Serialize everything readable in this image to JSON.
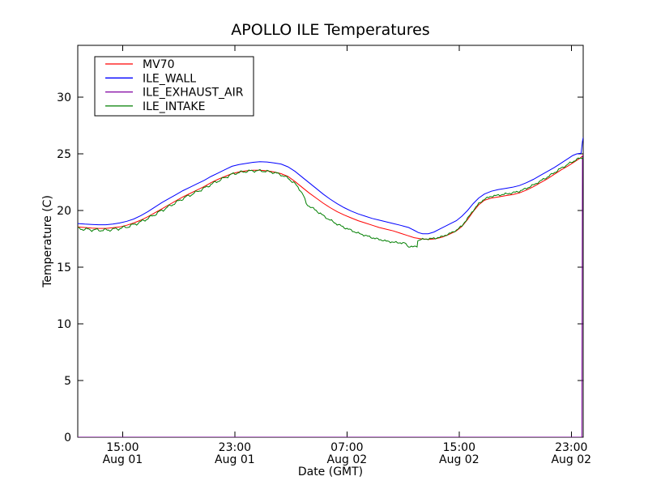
{
  "figure": {
    "background": "#ffffff",
    "frame_color": "#000000"
  },
  "chart_data": {
    "type": "line",
    "title": "APOLLO ILE Temperatures",
    "xlabel": "Date (GMT)",
    "ylabel": "Temperature (C)",
    "x_unit": "hours since Aug 01 00:00 GMT",
    "xlim": [
      11.8,
      47.85
    ],
    "ylim": [
      0,
      34.57
    ],
    "grid": false,
    "yticks": [
      0,
      5,
      10,
      15,
      20,
      25,
      30
    ],
    "xticks": [
      {
        "value": 15,
        "time": "15:00",
        "date": "Aug 01"
      },
      {
        "value": 23,
        "time": "23:00",
        "date": "Aug 01"
      },
      {
        "value": 31,
        "time": "07:00",
        "date": "Aug 02"
      },
      {
        "value": 39,
        "time": "15:00",
        "date": "Aug 02"
      },
      {
        "value": 47,
        "time": "23:00",
        "date": "Aug 02"
      }
    ],
    "legend": {
      "position": "upper left"
    },
    "series": [
      {
        "name": "MV70",
        "color": "#ff0000",
        "points": [
          [
            11.8,
            18.55
          ],
          [
            12.3,
            18.5
          ],
          [
            12.8,
            18.45
          ],
          [
            13.3,
            18.42
          ],
          [
            13.8,
            18.42
          ],
          [
            14.3,
            18.48
          ],
          [
            14.8,
            18.55
          ],
          [
            15.3,
            18.7
          ],
          [
            15.8,
            18.9
          ],
          [
            16.3,
            19.15
          ],
          [
            16.8,
            19.45
          ],
          [
            17.3,
            19.8
          ],
          [
            17.8,
            20.15
          ],
          [
            18.3,
            20.5
          ],
          [
            18.8,
            20.85
          ],
          [
            19.3,
            21.2
          ],
          [
            19.8,
            21.5
          ],
          [
            20.3,
            21.8
          ],
          [
            20.8,
            22.1
          ],
          [
            21.3,
            22.45
          ],
          [
            21.8,
            22.75
          ],
          [
            22.3,
            23.0
          ],
          [
            22.8,
            23.25
          ],
          [
            23.3,
            23.4
          ],
          [
            23.8,
            23.5
          ],
          [
            24.3,
            23.55
          ],
          [
            24.8,
            23.55
          ],
          [
            25.3,
            23.5
          ],
          [
            25.8,
            23.4
          ],
          [
            26.3,
            23.25
          ],
          [
            26.8,
            23.0
          ],
          [
            27.3,
            22.55
          ],
          [
            27.8,
            22.05
          ],
          [
            28.3,
            21.55
          ],
          [
            28.8,
            21.1
          ],
          [
            29.3,
            20.65
          ],
          [
            29.8,
            20.25
          ],
          [
            30.3,
            19.9
          ],
          [
            30.8,
            19.6
          ],
          [
            31.3,
            19.35
          ],
          [
            31.8,
            19.1
          ],
          [
            32.3,
            18.9
          ],
          [
            32.8,
            18.7
          ],
          [
            33.3,
            18.5
          ],
          [
            33.8,
            18.35
          ],
          [
            34.3,
            18.2
          ],
          [
            34.8,
            18.0
          ],
          [
            35.3,
            17.8
          ],
          [
            35.8,
            17.6
          ],
          [
            36.3,
            17.5
          ],
          [
            36.8,
            17.45
          ],
          [
            37.3,
            17.5
          ],
          [
            37.8,
            17.65
          ],
          [
            38.3,
            17.9
          ],
          [
            38.8,
            18.2
          ],
          [
            39.2,
            18.6
          ],
          [
            39.6,
            19.2
          ],
          [
            40.0,
            19.9
          ],
          [
            40.4,
            20.5
          ],
          [
            40.8,
            20.9
          ],
          [
            41.3,
            21.1
          ],
          [
            41.8,
            21.2
          ],
          [
            42.3,
            21.3
          ],
          [
            42.8,
            21.4
          ],
          [
            43.3,
            21.55
          ],
          [
            43.8,
            21.8
          ],
          [
            44.3,
            22.1
          ],
          [
            44.8,
            22.45
          ],
          [
            45.3,
            22.8
          ],
          [
            45.8,
            23.2
          ],
          [
            46.3,
            23.6
          ],
          [
            46.8,
            23.95
          ],
          [
            47.3,
            24.35
          ],
          [
            47.6,
            24.6
          ],
          [
            47.8,
            24.8
          ],
          [
            47.85,
            24.9
          ]
        ]
      },
      {
        "name": "ILE_WALL",
        "color": "#0000ff",
        "points": [
          [
            11.8,
            18.85
          ],
          [
            12.3,
            18.8
          ],
          [
            12.8,
            18.77
          ],
          [
            13.3,
            18.74
          ],
          [
            13.8,
            18.74
          ],
          [
            14.3,
            18.8
          ],
          [
            14.8,
            18.9
          ],
          [
            15.3,
            19.05
          ],
          [
            15.8,
            19.25
          ],
          [
            16.3,
            19.55
          ],
          [
            16.8,
            19.9
          ],
          [
            17.3,
            20.3
          ],
          [
            17.8,
            20.7
          ],
          [
            18.3,
            21.05
          ],
          [
            18.8,
            21.4
          ],
          [
            19.3,
            21.75
          ],
          [
            19.8,
            22.05
          ],
          [
            20.3,
            22.35
          ],
          [
            20.8,
            22.65
          ],
          [
            21.3,
            23.0
          ],
          [
            21.8,
            23.3
          ],
          [
            22.3,
            23.6
          ],
          [
            22.8,
            23.9
          ],
          [
            23.3,
            24.05
          ],
          [
            23.8,
            24.15
          ],
          [
            24.3,
            24.25
          ],
          [
            24.8,
            24.3
          ],
          [
            25.3,
            24.28
          ],
          [
            25.8,
            24.2
          ],
          [
            26.3,
            24.1
          ],
          [
            26.8,
            23.85
          ],
          [
            27.3,
            23.45
          ],
          [
            27.8,
            22.95
          ],
          [
            28.3,
            22.45
          ],
          [
            28.8,
            21.95
          ],
          [
            29.3,
            21.45
          ],
          [
            29.8,
            21.0
          ],
          [
            30.3,
            20.6
          ],
          [
            30.8,
            20.25
          ],
          [
            31.3,
            19.95
          ],
          [
            31.8,
            19.7
          ],
          [
            32.3,
            19.5
          ],
          [
            32.8,
            19.3
          ],
          [
            33.3,
            19.15
          ],
          [
            33.8,
            19.0
          ],
          [
            34.3,
            18.85
          ],
          [
            34.8,
            18.7
          ],
          [
            35.1,
            18.6
          ],
          [
            35.4,
            18.5
          ],
          [
            35.8,
            18.25
          ],
          [
            36.1,
            18.05
          ],
          [
            36.4,
            17.95
          ],
          [
            36.8,
            17.95
          ],
          [
            37.2,
            18.1
          ],
          [
            37.6,
            18.35
          ],
          [
            38.0,
            18.6
          ],
          [
            38.4,
            18.85
          ],
          [
            38.8,
            19.1
          ],
          [
            39.2,
            19.5
          ],
          [
            39.6,
            20.0
          ],
          [
            40.0,
            20.6
          ],
          [
            40.4,
            21.1
          ],
          [
            40.8,
            21.45
          ],
          [
            41.3,
            21.7
          ],
          [
            41.8,
            21.85
          ],
          [
            42.3,
            21.95
          ],
          [
            42.8,
            22.05
          ],
          [
            43.3,
            22.2
          ],
          [
            43.8,
            22.45
          ],
          [
            44.3,
            22.75
          ],
          [
            44.8,
            23.1
          ],
          [
            45.3,
            23.45
          ],
          [
            45.8,
            23.8
          ],
          [
            46.3,
            24.2
          ],
          [
            46.8,
            24.6
          ],
          [
            47.1,
            24.85
          ],
          [
            47.4,
            25.0
          ],
          [
            47.7,
            25.05
          ],
          [
            47.8,
            26.1
          ],
          [
            47.85,
            26.45
          ]
        ]
      },
      {
        "name": "ILE_EXHAUST_AIR",
        "color": "#8000a0",
        "points": [
          [
            11.8,
            0
          ],
          [
            47.75,
            0
          ],
          [
            47.8,
            24.8
          ],
          [
            47.85,
            24.85
          ]
        ]
      },
      {
        "name": "ILE_INTAKE",
        "color": "#007f00",
        "noise": {
          "amplitude": 0.07,
          "note": "sensor jitter seen as jagged trace"
        },
        "points": [
          [
            11.8,
            18.4
          ],
          [
            12.3,
            18.35
          ],
          [
            12.8,
            18.3
          ],
          [
            13.3,
            18.27
          ],
          [
            13.8,
            18.27
          ],
          [
            14.3,
            18.33
          ],
          [
            14.8,
            18.42
          ],
          [
            15.3,
            18.55
          ],
          [
            15.8,
            18.75
          ],
          [
            16.3,
            19.0
          ],
          [
            16.8,
            19.3
          ],
          [
            17.3,
            19.65
          ],
          [
            17.8,
            20.0
          ],
          [
            18.3,
            20.35
          ],
          [
            18.8,
            20.7
          ],
          [
            19.3,
            21.05
          ],
          [
            19.8,
            21.35
          ],
          [
            20.3,
            21.65
          ],
          [
            20.8,
            21.95
          ],
          [
            21.3,
            22.3
          ],
          [
            21.8,
            22.6
          ],
          [
            22.3,
            22.9
          ],
          [
            22.8,
            23.2
          ],
          [
            23.3,
            23.35
          ],
          [
            23.8,
            23.45
          ],
          [
            24.3,
            23.5
          ],
          [
            24.8,
            23.5
          ],
          [
            25.3,
            23.45
          ],
          [
            25.8,
            23.35
          ],
          [
            26.3,
            23.15
          ],
          [
            26.8,
            22.85
          ],
          [
            27.3,
            22.35
          ],
          [
            27.7,
            21.75
          ],
          [
            27.9,
            21.3
          ],
          [
            28.1,
            20.6
          ],
          [
            28.3,
            20.4
          ],
          [
            28.8,
            20.0
          ],
          [
            29.3,
            19.55
          ],
          [
            29.8,
            19.15
          ],
          [
            30.3,
            18.8
          ],
          [
            30.8,
            18.5
          ],
          [
            31.3,
            18.25
          ],
          [
            31.8,
            18.0
          ],
          [
            32.3,
            17.8
          ],
          [
            32.8,
            17.6
          ],
          [
            33.3,
            17.45
          ],
          [
            33.8,
            17.3
          ],
          [
            34.3,
            17.2
          ],
          [
            34.8,
            17.15
          ],
          [
            35.2,
            17.1
          ],
          [
            35.3,
            16.85
          ],
          [
            35.5,
            16.82
          ],
          [
            35.8,
            16.8
          ],
          [
            36.0,
            16.85
          ],
          [
            36.05,
            17.4
          ],
          [
            36.3,
            17.45
          ],
          [
            36.8,
            17.5
          ],
          [
            37.3,
            17.55
          ],
          [
            37.8,
            17.7
          ],
          [
            38.3,
            17.95
          ],
          [
            38.8,
            18.25
          ],
          [
            39.2,
            18.65
          ],
          [
            39.6,
            19.3
          ],
          [
            40.0,
            20.0
          ],
          [
            40.4,
            20.6
          ],
          [
            40.8,
            21.0
          ],
          [
            41.3,
            21.25
          ],
          [
            41.8,
            21.35
          ],
          [
            42.3,
            21.45
          ],
          [
            42.8,
            21.55
          ],
          [
            43.3,
            21.7
          ],
          [
            43.8,
            21.95
          ],
          [
            44.3,
            22.25
          ],
          [
            44.8,
            22.6
          ],
          [
            45.3,
            22.95
          ],
          [
            45.8,
            23.35
          ],
          [
            46.3,
            23.75
          ],
          [
            46.8,
            24.1
          ],
          [
            47.3,
            24.45
          ],
          [
            47.6,
            24.6
          ],
          [
            47.85,
            24.7
          ]
        ]
      }
    ]
  },
  "legend_order": [
    "MV70",
    "ILE_WALL",
    "ILE_EXHAUST_AIR",
    "ILE_INTAKE"
  ]
}
